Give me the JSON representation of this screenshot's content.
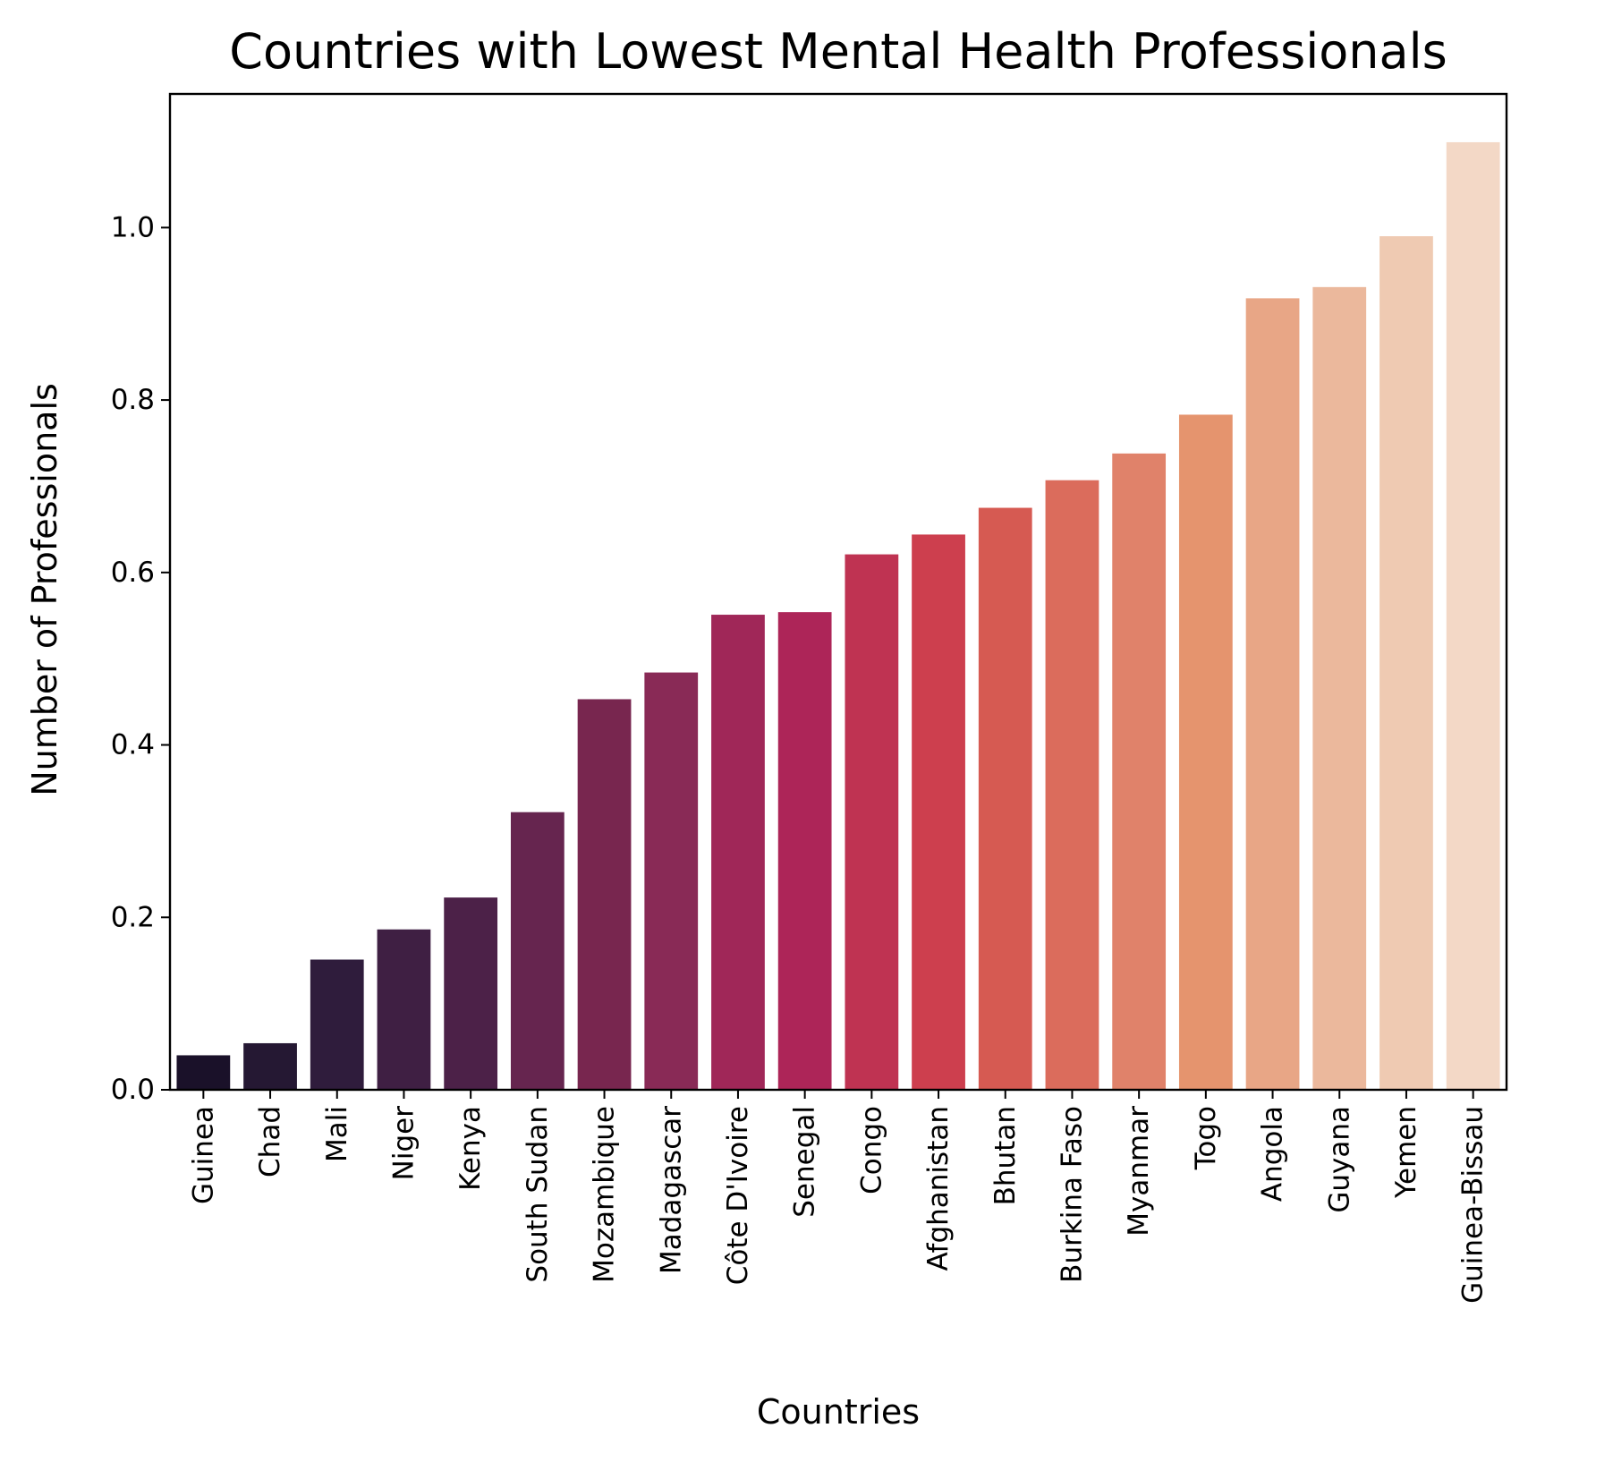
{
  "chart_data": {
    "type": "bar",
    "title": "Countries with Lowest Mental Health Professionals",
    "xlabel": "Countries",
    "ylabel": "Number of Professionals",
    "ylim": [
      0,
      1.155
    ],
    "yticks": [
      0.0,
      0.2,
      0.4,
      0.6,
      0.8,
      1.0
    ],
    "ytick_labels": [
      "0.0",
      "0.2",
      "0.4",
      "0.6",
      "0.8",
      "1.0"
    ],
    "grid": false,
    "legend": "none",
    "categories": [
      "Guinea",
      "Chad",
      "Mali",
      "Niger",
      "Kenya",
      "South Sudan",
      "Mozambique",
      "Madagascar",
      "Côte D'Ivoire",
      "Senegal",
      "Congo",
      "Afghanistan",
      "Bhutan",
      "Burkina Faso",
      "Myanmar",
      "Togo",
      "Angola",
      "Guyana",
      "Yemen",
      "Guinea-Bissau"
    ],
    "values": [
      0.04,
      0.054,
      0.151,
      0.186,
      0.223,
      0.322,
      0.453,
      0.484,
      0.551,
      0.554,
      0.621,
      0.644,
      0.675,
      0.707,
      0.738,
      0.783,
      0.918,
      0.931,
      0.99,
      1.099
    ],
    "colors": [
      "#1a1129",
      "#251833",
      "#2f1c3c",
      "#3f1f43",
      "#4c2148",
      "#66254f",
      "#78264f",
      "#892a56",
      "#a02758",
      "#ad2558",
      "#bf3352",
      "#cd3f4e",
      "#d65a52",
      "#db6c5c",
      "#e0826a",
      "#e5946e",
      "#e8a686",
      "#ebb89c",
      "#efcab2",
      "#f3d8c6"
    ]
  }
}
